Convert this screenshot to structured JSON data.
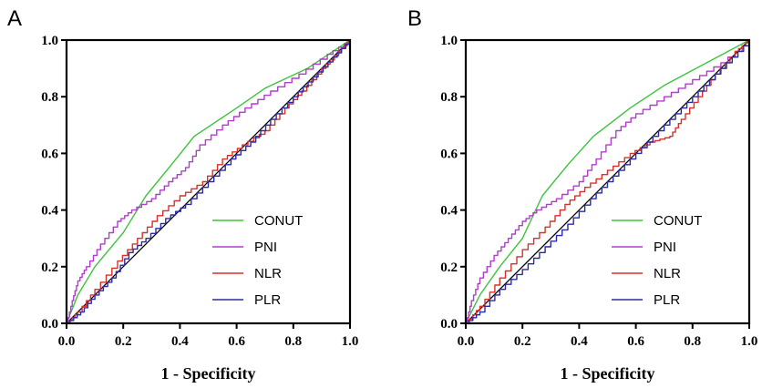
{
  "colors": {
    "CONUT": "#3cc43c",
    "PNI": "#b03ccc",
    "NLR": "#d8302a",
    "PLR": "#2a2aa8",
    "reference": "#000000"
  },
  "chart_data": [
    {
      "type": "line",
      "panel": "A",
      "xlabel": "1 - Specificity",
      "ylabel": "",
      "xlim": [
        0,
        1
      ],
      "ylim": [
        0,
        1
      ],
      "xticks": [
        "0.0",
        "0.2",
        "0.4",
        "0.6",
        "0.8",
        "1.0"
      ],
      "yticks": [
        "0.0",
        "0.2",
        "0.4",
        "0.6",
        "0.8",
        "1.0"
      ],
      "legend_position": "bottom-right",
      "reference_line": [
        [
          0,
          0
        ],
        [
          1,
          1
        ]
      ],
      "series": [
        {
          "name": "CONUT",
          "points": [
            [
              0,
              0
            ],
            [
              0.04,
              0.1
            ],
            [
              0.1,
              0.2
            ],
            [
              0.2,
              0.32
            ],
            [
              0.28,
              0.45
            ],
            [
              0.37,
              0.56
            ],
            [
              0.45,
              0.66
            ],
            [
              0.6,
              0.76
            ],
            [
              0.7,
              0.83
            ],
            [
              0.85,
              0.9
            ],
            [
              1,
              1
            ]
          ]
        },
        {
          "name": "PNI",
          "points": [
            [
              0,
              0
            ],
            [
              0.02,
              0.08
            ],
            [
              0.04,
              0.15
            ],
            [
              0.07,
              0.2
            ],
            [
              0.12,
              0.28
            ],
            [
              0.18,
              0.36
            ],
            [
              0.23,
              0.4
            ],
            [
              0.3,
              0.44
            ],
            [
              0.36,
              0.5
            ],
            [
              0.42,
              0.55
            ],
            [
              0.47,
              0.63
            ],
            [
              0.55,
              0.7
            ],
            [
              0.63,
              0.76
            ],
            [
              0.72,
              0.82
            ],
            [
              0.82,
              0.88
            ],
            [
              0.92,
              0.95
            ],
            [
              1,
              1
            ]
          ]
        },
        {
          "name": "NLR",
          "points": [
            [
              0,
              0
            ],
            [
              0.04,
              0.04
            ],
            [
              0.1,
              0.12
            ],
            [
              0.18,
              0.22
            ],
            [
              0.25,
              0.3
            ],
            [
              0.32,
              0.38
            ],
            [
              0.4,
              0.45
            ],
            [
              0.48,
              0.5
            ],
            [
              0.55,
              0.58
            ],
            [
              0.62,
              0.63
            ],
            [
              0.7,
              0.68
            ],
            [
              0.77,
              0.76
            ],
            [
              0.83,
              0.82
            ],
            [
              0.9,
              0.9
            ],
            [
              0.96,
              0.96
            ],
            [
              1,
              1
            ]
          ]
        },
        {
          "name": "PLR",
          "points": [
            [
              0,
              0
            ],
            [
              0.05,
              0.04
            ],
            [
              0.1,
              0.1
            ],
            [
              0.16,
              0.16
            ],
            [
              0.22,
              0.25
            ],
            [
              0.28,
              0.3
            ],
            [
              0.35,
              0.37
            ],
            [
              0.42,
              0.42
            ],
            [
              0.5,
              0.5
            ],
            [
              0.58,
              0.58
            ],
            [
              0.65,
              0.64
            ],
            [
              0.72,
              0.72
            ],
            [
              0.8,
              0.8
            ],
            [
              0.87,
              0.87
            ],
            [
              0.94,
              0.94
            ],
            [
              1,
              1
            ]
          ]
        }
      ]
    },
    {
      "type": "line",
      "panel": "B",
      "xlabel": "1 - Specificity",
      "ylabel": "",
      "xlim": [
        0,
        1
      ],
      "ylim": [
        0,
        1
      ],
      "xticks": [
        "0.0",
        "0.2",
        "0.4",
        "0.6",
        "0.8",
        "1.0"
      ],
      "yticks": [
        "0.0",
        "0.2",
        "0.4",
        "0.6",
        "0.8",
        "1.0"
      ],
      "legend_position": "bottom-right",
      "reference_line": [
        [
          0,
          0
        ],
        [
          1,
          1
        ]
      ],
      "series": [
        {
          "name": "CONUT",
          "points": [
            [
              0,
              0
            ],
            [
              0.05,
              0.1
            ],
            [
              0.12,
              0.2
            ],
            [
              0.2,
              0.3
            ],
            [
              0.27,
              0.45
            ],
            [
              0.36,
              0.56
            ],
            [
              0.45,
              0.66
            ],
            [
              0.58,
              0.76
            ],
            [
              0.7,
              0.84
            ],
            [
              0.85,
              0.92
            ],
            [
              1,
              1
            ]
          ]
        },
        {
          "name": "PNI",
          "points": [
            [
              0,
              0
            ],
            [
              0.02,
              0.08
            ],
            [
              0.05,
              0.16
            ],
            [
              0.1,
              0.24
            ],
            [
              0.15,
              0.3
            ],
            [
              0.2,
              0.36
            ],
            [
              0.25,
              0.4
            ],
            [
              0.32,
              0.44
            ],
            [
              0.4,
              0.5
            ],
            [
              0.46,
              0.58
            ],
            [
              0.53,
              0.68
            ],
            [
              0.6,
              0.74
            ],
            [
              0.7,
              0.8
            ],
            [
              0.8,
              0.86
            ],
            [
              0.9,
              0.92
            ],
            [
              1,
              1
            ]
          ]
        },
        {
          "name": "NLR",
          "points": [
            [
              0,
              0
            ],
            [
              0.05,
              0.06
            ],
            [
              0.12,
              0.16
            ],
            [
              0.2,
              0.26
            ],
            [
              0.28,
              0.34
            ],
            [
              0.35,
              0.42
            ],
            [
              0.42,
              0.48
            ],
            [
              0.5,
              0.54
            ],
            [
              0.58,
              0.6
            ],
            [
              0.65,
              0.64
            ],
            [
              0.72,
              0.66
            ],
            [
              0.76,
              0.72
            ],
            [
              0.82,
              0.8
            ],
            [
              0.88,
              0.88
            ],
            [
              0.95,
              0.96
            ],
            [
              1,
              1
            ]
          ]
        },
        {
          "name": "PLR",
          "points": [
            [
              0,
              0
            ],
            [
              0.05,
              0.04
            ],
            [
              0.12,
              0.12
            ],
            [
              0.2,
              0.19
            ],
            [
              0.28,
              0.27
            ],
            [
              0.36,
              0.35
            ],
            [
              0.44,
              0.44
            ],
            [
              0.52,
              0.52
            ],
            [
              0.6,
              0.6
            ],
            [
              0.68,
              0.68
            ],
            [
              0.76,
              0.76
            ],
            [
              0.84,
              0.84
            ],
            [
              0.92,
              0.92
            ],
            [
              1,
              1
            ]
          ]
        }
      ]
    }
  ]
}
